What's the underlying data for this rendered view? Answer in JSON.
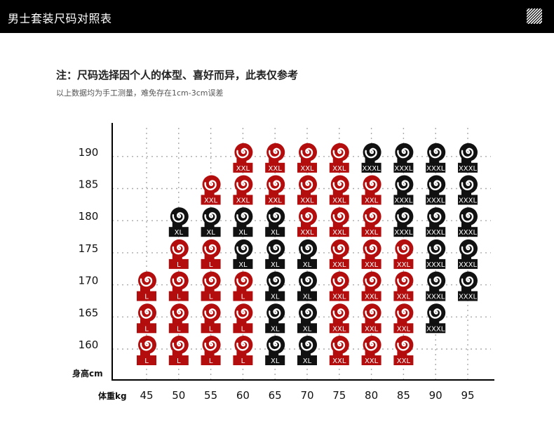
{
  "header": {
    "title": "男士套装尺码对照表",
    "icon": "striped-square-icon"
  },
  "note": {
    "title": "注：尺码选择因个人的体型、喜好而异，此表仅参考",
    "subtitle": "以上数据均为手工测量，难免存在1cm-3cm误差"
  },
  "chart_data": {
    "type": "table",
    "ylabel": "身高cm",
    "xlabel": "体重kg",
    "x": [
      45,
      50,
      55,
      60,
      65,
      70,
      75,
      80,
      85,
      90,
      95
    ],
    "y": [
      160,
      165,
      170,
      175,
      180,
      185,
      190
    ],
    "grid": true,
    "size_colors": {
      "L": "#b30d0d",
      "XL": "#111111",
      "XXL": "#b30d0d",
      "XXXL": "#111111"
    },
    "cells": [
      {
        "height": 190,
        "sizes": [
          null,
          null,
          null,
          "XXL",
          "XXL",
          "XXL",
          "XXL",
          "XXXL",
          "XXXL",
          "XXXL",
          "XXXL"
        ]
      },
      {
        "height": 185,
        "sizes": [
          null,
          null,
          "XXL",
          "XXL",
          "XXL",
          "XXL",
          "XXL",
          "XXL",
          "XXXL",
          "XXXL",
          "XXXL"
        ]
      },
      {
        "height": 180,
        "sizes": [
          null,
          "XL",
          "XL",
          "XL",
          "XL",
          "XXL",
          "XXL",
          "XXL",
          "XXXL",
          "XXXL",
          "XXXL"
        ]
      },
      {
        "height": 175,
        "sizes": [
          null,
          "L",
          "L",
          "XL",
          "XL",
          "XL",
          "XXL",
          "XXL",
          "XXL",
          "XXXL",
          "XXXL"
        ]
      },
      {
        "height": 170,
        "sizes": [
          "L",
          "L",
          "L",
          "L",
          "XL",
          "XL",
          "XXL",
          "XXL",
          "XXL",
          "XXXL",
          "XXXL"
        ]
      },
      {
        "height": 165,
        "sizes": [
          "L",
          "L",
          "L",
          "L",
          "XL",
          "XL",
          "XXL",
          "XXL",
          "XXL",
          "XXXL",
          null
        ]
      },
      {
        "height": 160,
        "sizes": [
          "L",
          "L",
          "L",
          "L",
          "XL",
          "XL",
          "XXL",
          "XXL",
          "XXL",
          null,
          null
        ]
      }
    ]
  }
}
